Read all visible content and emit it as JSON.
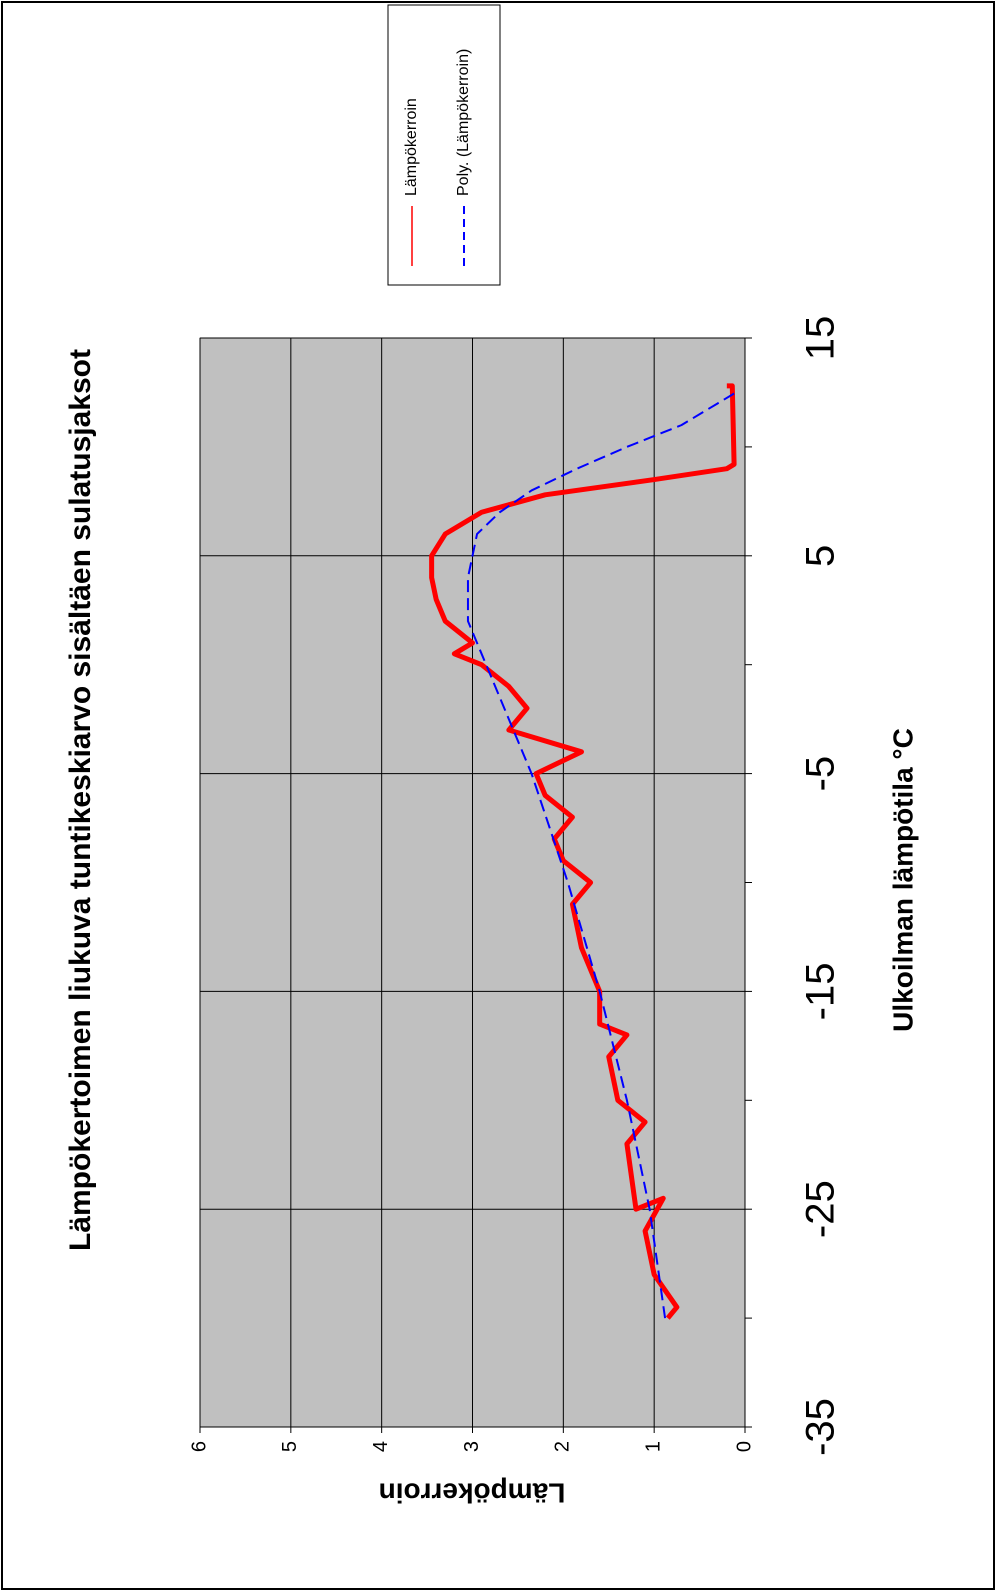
{
  "chart_data": {
    "type": "line",
    "title": "Lämpökertoimen liukuva tuntikeskiarvo sisältäen sulatusjaksot",
    "x_label": "Ulkoilman lämpötila °C",
    "y_label": "Lämpökerroin",
    "xlim": [
      -35,
      15
    ],
    "xticks": [
      -35,
      -25,
      -15,
      -5,
      5,
      15
    ],
    "xminorticks": [
      -30,
      -20,
      -10,
      0,
      10
    ],
    "ylim": [
      0,
      6
    ],
    "yticks": [
      0,
      1,
      2,
      3,
      4,
      5,
      6
    ],
    "grid": true,
    "background": "#c0c0c0",
    "legend": "right",
    "series": [
      {
        "name": "Lämpökerroin",
        "color": "#ff0000",
        "style": "solid",
        "x": [
          -30,
          -29.5,
          -28,
          -26,
          -24.5,
          -25,
          -22,
          -21,
          -20,
          -18,
          -17,
          -16.5,
          -15,
          -13,
          -11,
          -10,
          -9,
          -8,
          -7,
          -6,
          -5,
          -4,
          -3,
          -2,
          -1,
          0,
          0.5,
          1,
          2,
          3,
          4,
          5,
          6,
          7,
          7.8,
          8.5,
          9,
          9.2,
          12.8,
          12.8
        ],
        "values": [
          0.85,
          0.75,
          1.0,
          1.1,
          0.9,
          1.2,
          1.3,
          1.1,
          1.4,
          1.5,
          1.3,
          1.6,
          1.6,
          1.8,
          1.9,
          1.7,
          2.0,
          2.1,
          1.9,
          2.2,
          2.3,
          1.8,
          2.6,
          2.4,
          2.6,
          2.9,
          3.2,
          3.0,
          3.3,
          3.4,
          3.45,
          3.45,
          3.3,
          2.9,
          2.2,
          1.0,
          0.2,
          0.12,
          0.14,
          0.2
        ]
      },
      {
        "name": "Poly. (Lämpökerroin)",
        "color": "#0000ff",
        "style": "dashed",
        "x": [
          -30,
          -25,
          -20,
          -15,
          -10,
          -5,
          0,
          2,
          4,
          6,
          7,
          8,
          9,
          10,
          11,
          12,
          12.5
        ],
        "values": [
          0.88,
          1.05,
          1.3,
          1.6,
          1.95,
          2.35,
          2.85,
          3.05,
          3.05,
          2.95,
          2.7,
          2.35,
          1.85,
          1.3,
          0.7,
          0.3,
          0.1
        ]
      }
    ]
  }
}
